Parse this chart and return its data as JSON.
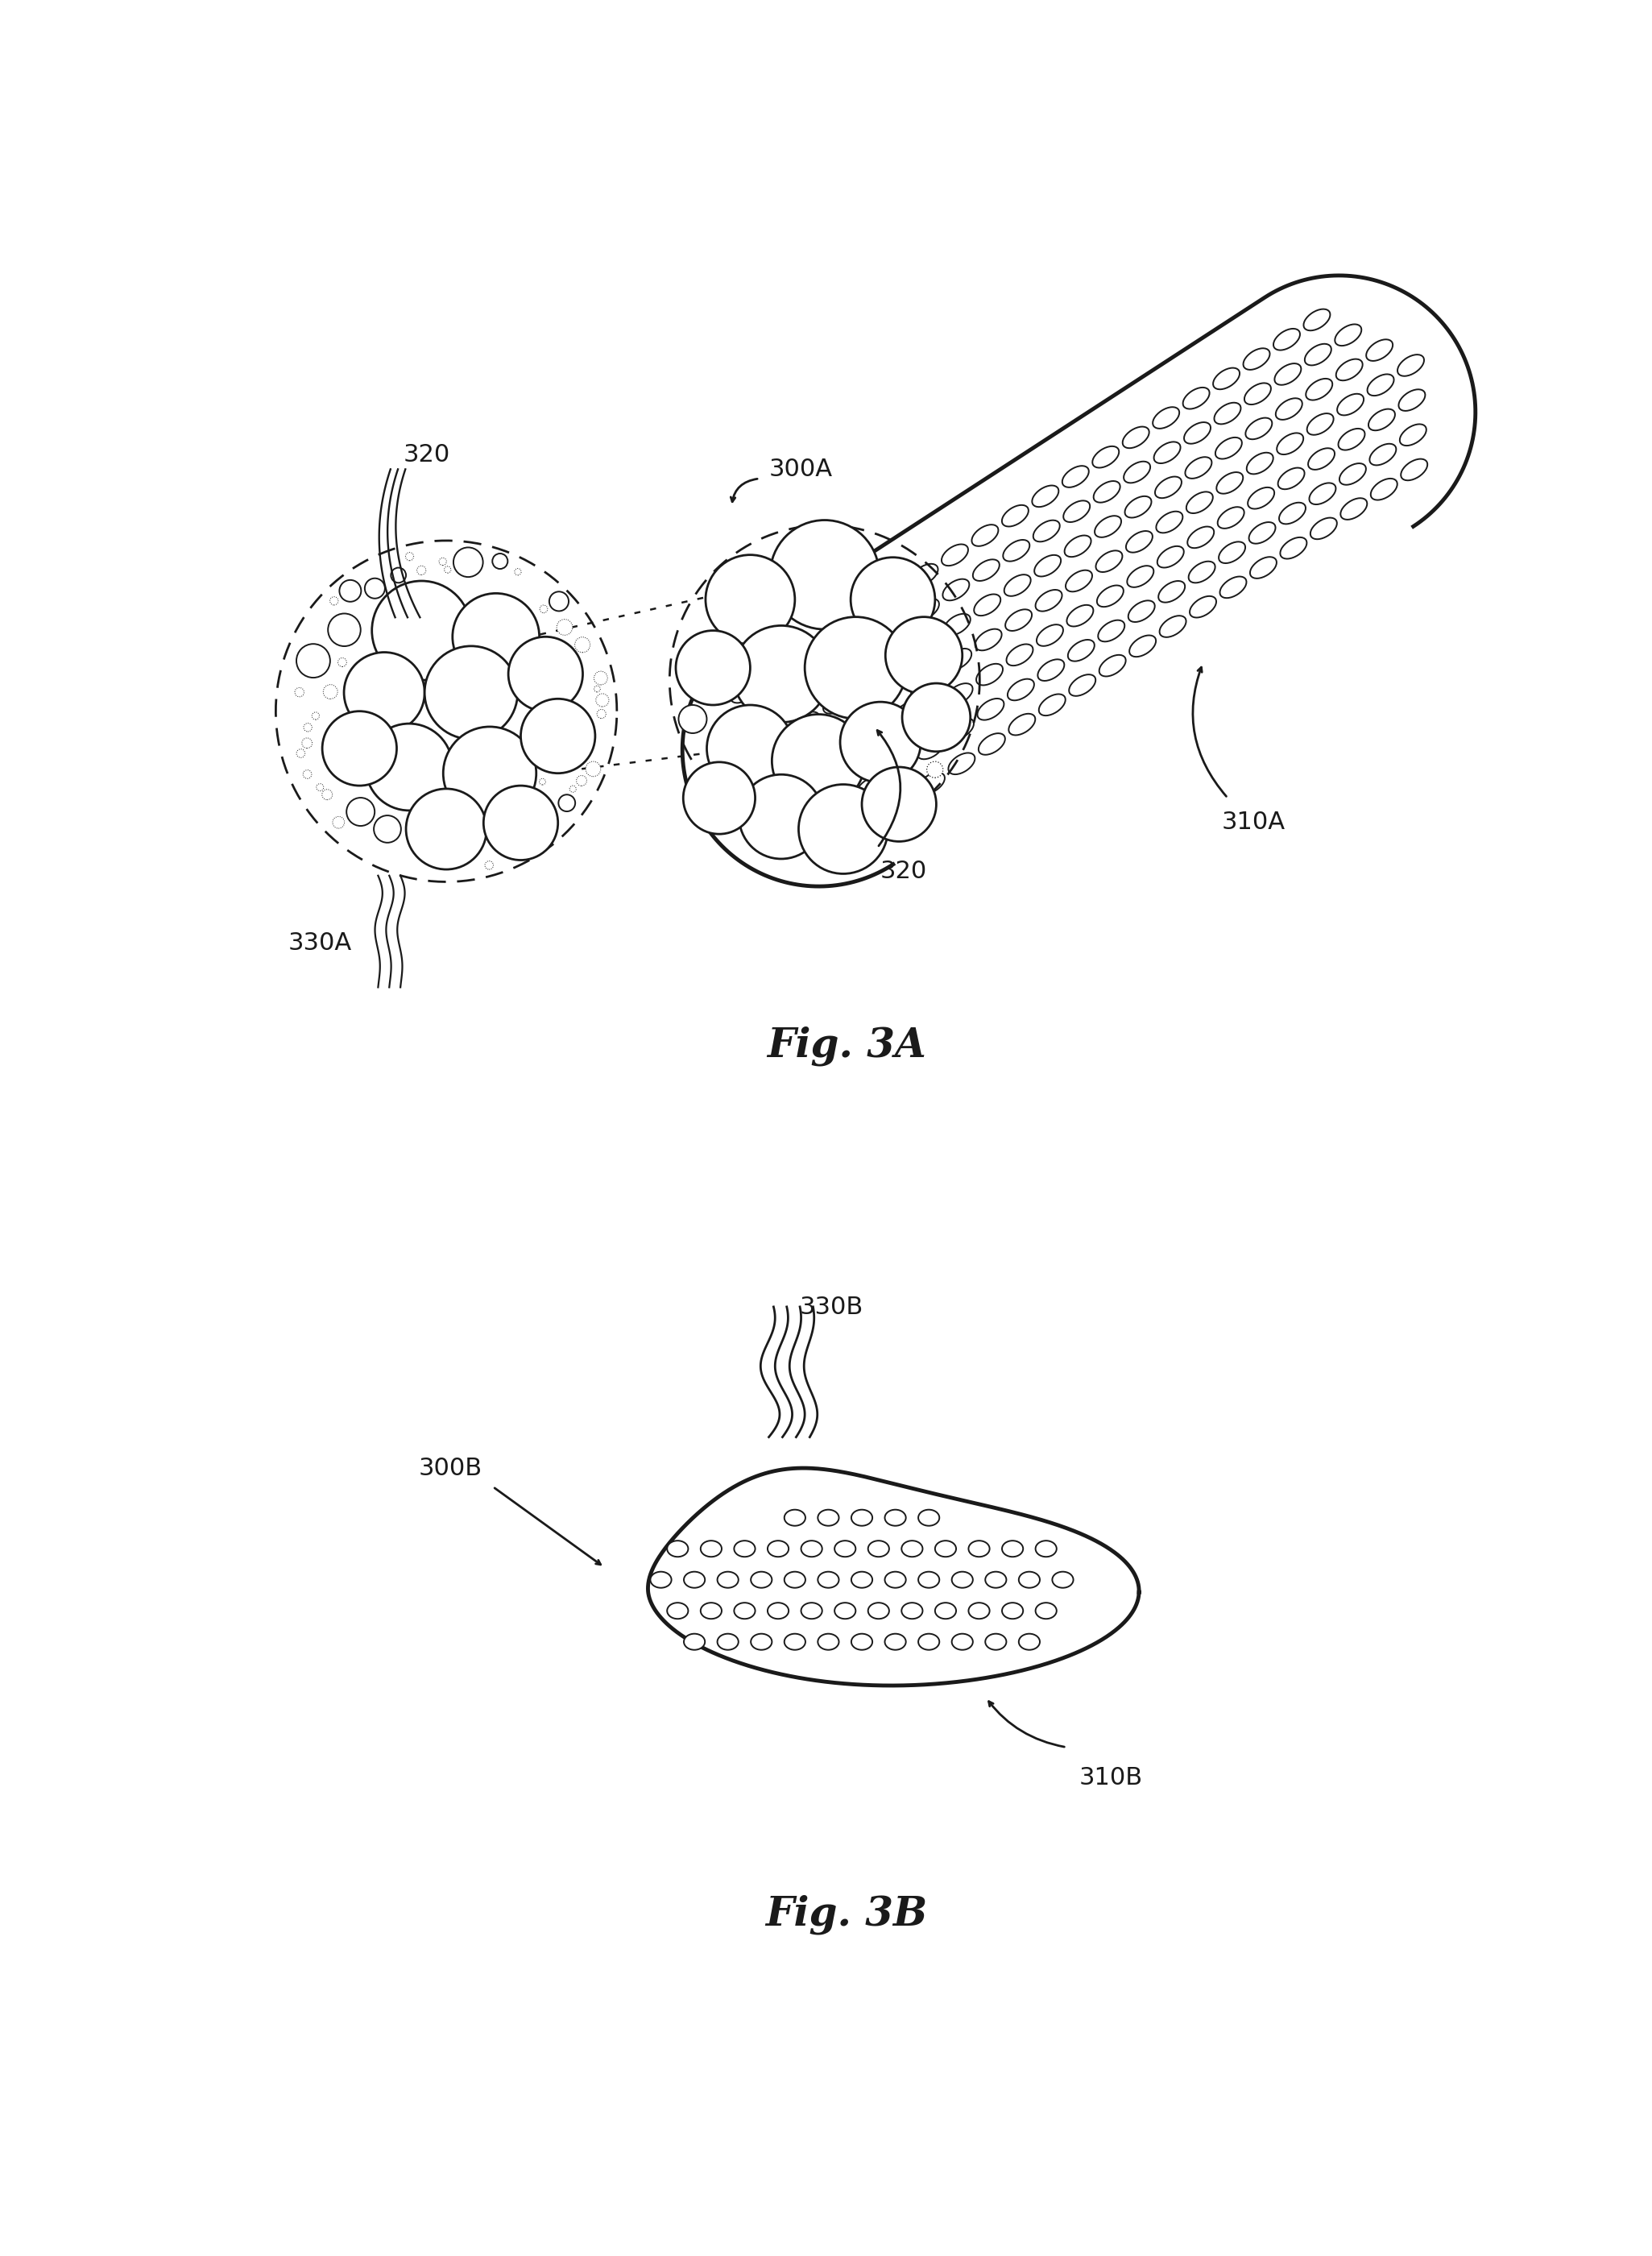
{
  "fig_title_a": "Fig. 3A",
  "fig_title_b": "Fig. 3B",
  "label_300A": "300A",
  "label_300B": "300B",
  "label_310A": "310A",
  "label_310B": "310B",
  "label_320_top": "320",
  "label_320_bot": "320",
  "label_330A": "330A",
  "label_330B": "330B",
  "bg_color": "#ffffff",
  "line_color": "#1a1a1a",
  "lw_main": 3.0,
  "lw_med": 2.0,
  "lw_thin": 1.4,
  "font_size_label": 22,
  "font_size_title": 36
}
